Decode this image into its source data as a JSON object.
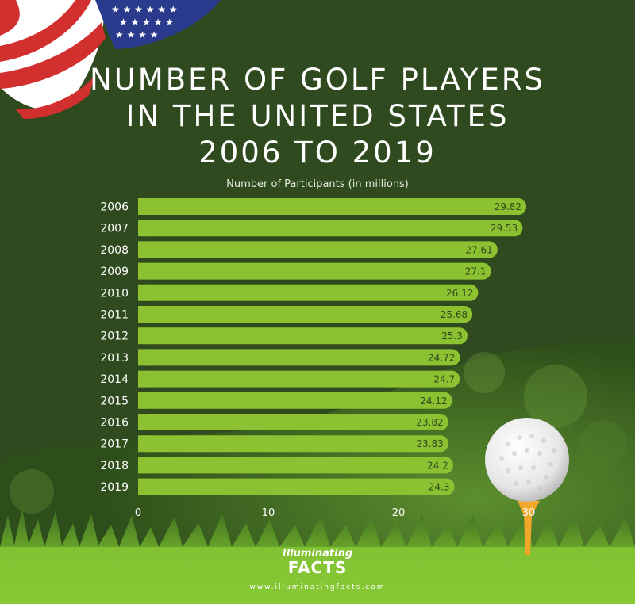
{
  "title_lines": [
    "NUMBER OF GOLF PLAYERS",
    "IN THE UNITED STATES",
    "2006 TO 2019"
  ],
  "subtitle": "Number of Participants  (in millions)",
  "brand": {
    "line1": "Illuminating",
    "line2": "FACTS",
    "url": "www.illuminatingfacts.com"
  },
  "colors": {
    "bar": "#8cc231",
    "background": "#2f4a1e",
    "label": "#ffffff"
  },
  "chart_data": {
    "type": "bar",
    "orientation": "horizontal",
    "categories": [
      "2006",
      "2007",
      "2008",
      "2009",
      "2010",
      "2011",
      "2012",
      "2013",
      "2014",
      "2015",
      "2016",
      "2017",
      "2018",
      "2019"
    ],
    "values": [
      29.82,
      29.53,
      27.61,
      27.1,
      26.12,
      25.68,
      25.3,
      24.72,
      24.7,
      24.12,
      23.82,
      23.83,
      24.2,
      24.3
    ],
    "value_labels": [
      "29.82",
      "29.53",
      "27.61",
      "27.1",
      "26.12",
      "25.68",
      "25.3",
      "24.72",
      "24.7",
      "24.12",
      "23.82",
      "23.83",
      "24.2",
      "24.3"
    ],
    "xticks": [
      "0",
      "10",
      "20",
      "30"
    ],
    "xlim": [
      0,
      30
    ],
    "grid": false
  }
}
